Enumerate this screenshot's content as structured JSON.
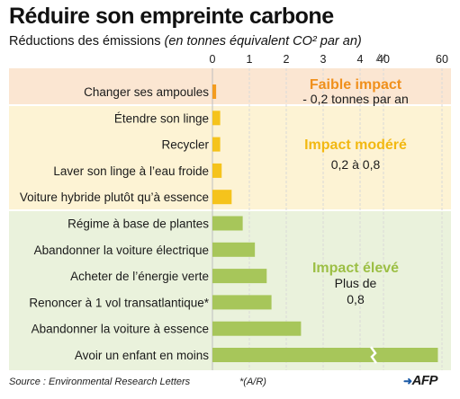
{
  "header": {
    "title": "Réduire son empreinte carbone",
    "subtitle_main": "Réductions des émissions",
    "subtitle_unit": "(en tonnes équivalent CO² par an)"
  },
  "chart_data": {
    "type": "bar",
    "orientation": "horizontal",
    "xlabel": "",
    "ylabel": "",
    "x_ticks": [
      "0",
      "1",
      "2",
      "3",
      "4",
      "40",
      "60"
    ],
    "axis_note": "broken axis: linear 0-4, then compressed 40-60",
    "categories": [
      "Changer ses ampoules",
      "Étendre son linge",
      "Recycler",
      "Laver son linge à l’eau froide",
      "Voiture hybride plutôt qu’à essence",
      "Régime à base de plantes",
      "Abandonner la voiture électrique",
      "Acheter de l’énergie verte",
      "Renoncer à 1 vol transatlantique*",
      "Abandonner la voiture à essence",
      "Avoir un enfant en moins"
    ],
    "values": [
      0.1,
      0.21,
      0.21,
      0.25,
      0.52,
      0.82,
      1.15,
      1.47,
      1.6,
      2.4,
      58.6
    ],
    "groups": [
      {
        "name": "Faible impact",
        "description": "- 0,2 tonnes par an",
        "color": "#f39c1f",
        "band": "#fbe6d2"
      },
      {
        "name": "Impact modéré",
        "description": "0,2 à 0,8",
        "color": "#f5c31c",
        "band": "#fdf3d4"
      },
      {
        "name": "Impact élevé",
        "description_line1": "Plus de",
        "description_line2": "0,8",
        "color": "#a7c65a",
        "band": "#eaf2dc"
      }
    ],
    "group_index": [
      0,
      1,
      1,
      1,
      1,
      2,
      2,
      2,
      2,
      2,
      2
    ]
  },
  "footer": {
    "source": "Source : Environmental Research Letters",
    "credit": "*(A/R)",
    "brand": "AFP"
  }
}
